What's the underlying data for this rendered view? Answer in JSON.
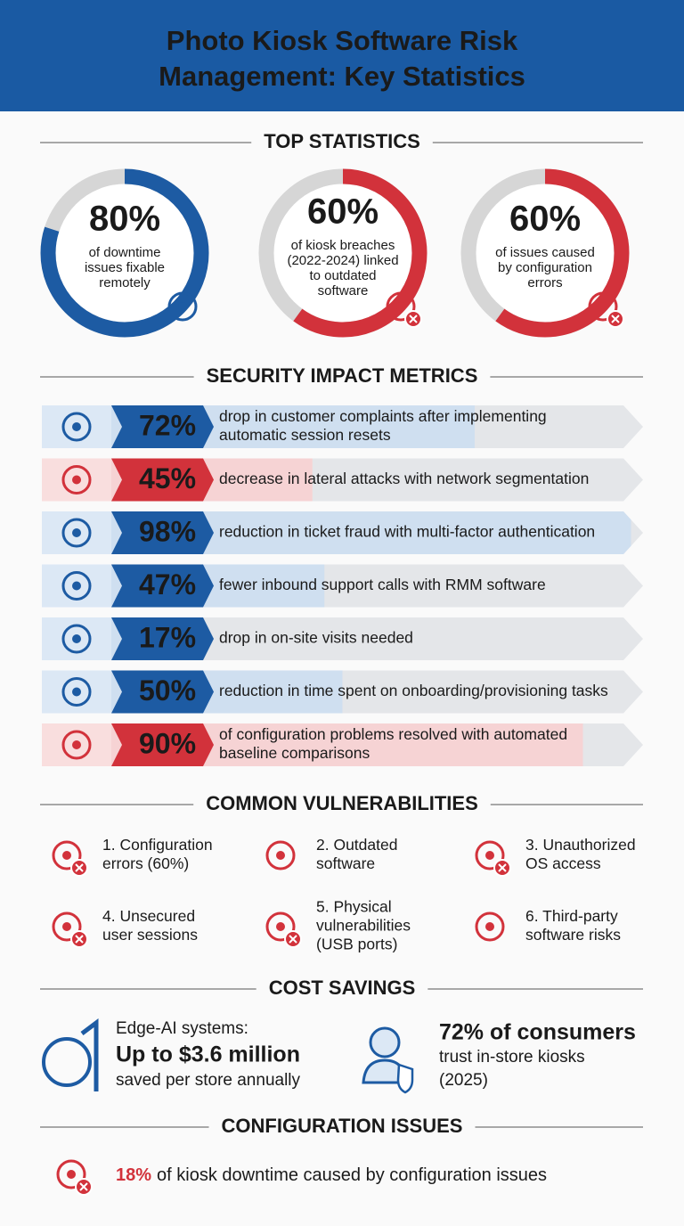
{
  "header": {
    "title": [
      "Photo Kiosk Software Risk",
      "Management: Key Statistics"
    ]
  },
  "top_statistics": {
    "heading": "TOP STATISTICS",
    "items": [
      {
        "value": 80,
        "label": "80%",
        "color": "#1d5ba3",
        "lines": [
          "of downtime",
          "issues fixable",
          "remotely"
        ]
      },
      {
        "value": 60,
        "label": "60%",
        "color": "#d2323b",
        "lines": [
          "of kiosk breaches",
          "(2022-2024) linked",
          "to outdated",
          "software"
        ]
      },
      {
        "value": 60,
        "label": "60%",
        "color": "#d2323b",
        "lines": [
          "of issues caused",
          "by configuration",
          "errors"
        ]
      }
    ]
  },
  "security_metrics": {
    "heading": "SECURITY IMPACT METRICS",
    "items": [
      {
        "value": 72,
        "label": "72%",
        "color": "#1d5ba3",
        "lines": [
          "drop in customer complaints after implementing",
          "automatic session resets"
        ]
      },
      {
        "value": 45,
        "label": "45%",
        "color": "#d2323b",
        "lines": [
          "decrease in lateral attacks with network segmentation"
        ]
      },
      {
        "value": 98,
        "label": "98%",
        "color": "#1d5ba3",
        "lines": [
          "reduction in ticket fraud with multi-factor authentication"
        ]
      },
      {
        "value": 47,
        "label": "47%",
        "color": "#1d5ba3",
        "lines": [
          "fewer inbound support calls with RMM software"
        ]
      },
      {
        "value": 17,
        "label": "17%",
        "color": "#1d5ba3",
        "lines": [
          "drop in on-site visits needed"
        ]
      },
      {
        "value": 50,
        "label": "50%",
        "color": "#1d5ba3",
        "lines": [
          "reduction in time spent on onboarding/provisioning tasks"
        ]
      },
      {
        "value": 90,
        "label": "90%",
        "color": "#d2323b",
        "lines": [
          "of configuration problems resolved with automated",
          "baseline comparisons"
        ]
      }
    ]
  },
  "vulnerabilities": {
    "heading": "COMMON VULNERABILITIES",
    "items": [
      {
        "lines": [
          "1. Configuration",
          "errors (60%)"
        ]
      },
      {
        "lines": [
          "2. Outdated",
          "software"
        ]
      },
      {
        "lines": [
          "3. Unauthorized",
          "OS access"
        ]
      },
      {
        "lines": [
          "4. Unsecured",
          "user sessions"
        ]
      },
      {
        "lines": [
          "5. Physical",
          "vulnerabilities",
          "(USB ports)"
        ]
      },
      {
        "lines": [
          "6. Third-party",
          "software risks"
        ]
      }
    ]
  },
  "cost_savings": {
    "heading": "COST SAVINGS",
    "left": {
      "intro": "Edge-AI systems:",
      "highlight": "Up to $3.6 million",
      "detail": "saved per store annually"
    },
    "right": {
      "highlight": "72% of consumers",
      "lines": [
        "trust in-store kiosks",
        "(2025)"
      ]
    }
  },
  "configuration_issues": {
    "heading": "CONFIGURATION ISSUES",
    "highlight": "18%",
    "text": "of kiosk downtime caused by configuration issues"
  }
}
